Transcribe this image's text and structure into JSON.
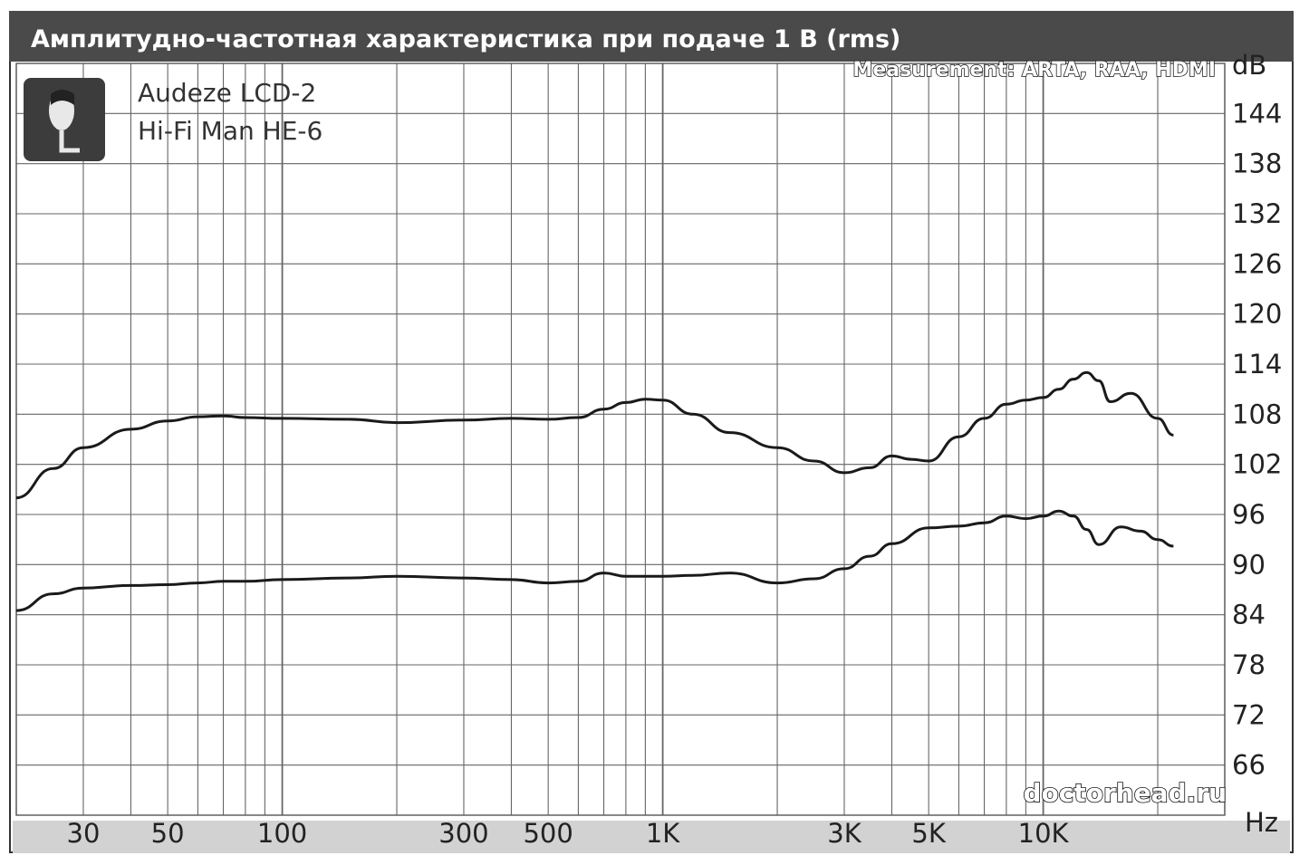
{
  "chart_data": {
    "type": "line",
    "title": "Амплитудно-частотная характеристика при подаче 1 В (rms)",
    "measurement_note": "Measurement: ARTA, RAA, HDMI",
    "credit": "doctorhead.ru",
    "xlabel": "Hz",
    "ylabel": "dB",
    "x_scale": "log",
    "xlim": [
      20,
      30000
    ],
    "ylim": [
      60,
      150
    ],
    "grid": true,
    "legend_position": "top-left",
    "x_ticks": [
      {
        "value": 30,
        "label": "30"
      },
      {
        "value": 50,
        "label": "50"
      },
      {
        "value": 100,
        "label": "100"
      },
      {
        "value": 300,
        "label": "300"
      },
      {
        "value": 500,
        "label": "500"
      },
      {
        "value": 1000,
        "label": "1K"
      },
      {
        "value": 3000,
        "label": "3K"
      },
      {
        "value": 5000,
        "label": "5K"
      },
      {
        "value": 10000,
        "label": "10K"
      }
    ],
    "y_ticks": [
      144,
      138,
      132,
      126,
      120,
      114,
      108,
      102,
      96,
      90,
      84,
      78,
      72,
      66
    ],
    "series": [
      {
        "name": "Audeze LCD-2",
        "x": [
          20,
          25,
          30,
          40,
          50,
          60,
          70,
          80,
          100,
          150,
          200,
          300,
          400,
          500,
          600,
          700,
          800,
          900,
          1000,
          1200,
          1500,
          2000,
          2500,
          3000,
          3500,
          4000,
          4500,
          5000,
          6000,
          7000,
          8000,
          9000,
          10000,
          11000,
          12000,
          13000,
          14000,
          15000,
          17000,
          20000,
          22000
        ],
        "y": [
          98.0,
          101.5,
          104.0,
          106.2,
          107.2,
          107.7,
          107.8,
          107.6,
          107.5,
          107.4,
          107.0,
          107.3,
          107.5,
          107.4,
          107.6,
          108.6,
          109.4,
          109.8,
          109.7,
          108.0,
          105.8,
          104.0,
          102.4,
          101.0,
          101.6,
          103.0,
          102.6,
          102.4,
          105.3,
          107.5,
          109.2,
          109.7,
          110.0,
          111.0,
          112.2,
          113.0,
          112.0,
          109.5,
          110.5,
          107.5,
          105.5
        ]
      },
      {
        "name": "Hi-Fi Man HE-6",
        "x": [
          20,
          25,
          30,
          40,
          50,
          60,
          70,
          80,
          100,
          150,
          200,
          300,
          400,
          500,
          600,
          700,
          800,
          900,
          1000,
          1200,
          1500,
          2000,
          2500,
          3000,
          3500,
          4000,
          5000,
          6000,
          7000,
          8000,
          9000,
          10000,
          11000,
          12000,
          13000,
          14000,
          16000,
          18000,
          20000,
          22000
        ],
        "y": [
          84.5,
          86.5,
          87.2,
          87.5,
          87.6,
          87.8,
          88.0,
          88.0,
          88.2,
          88.4,
          88.6,
          88.4,
          88.2,
          87.8,
          88.0,
          89.0,
          88.6,
          88.6,
          88.6,
          88.7,
          89.0,
          87.8,
          88.3,
          89.5,
          91.0,
          92.5,
          94.4,
          94.6,
          95.0,
          95.8,
          95.5,
          95.8,
          96.4,
          95.8,
          94.2,
          92.4,
          94.5,
          94.0,
          93.0,
          92.2
        ]
      }
    ]
  }
}
